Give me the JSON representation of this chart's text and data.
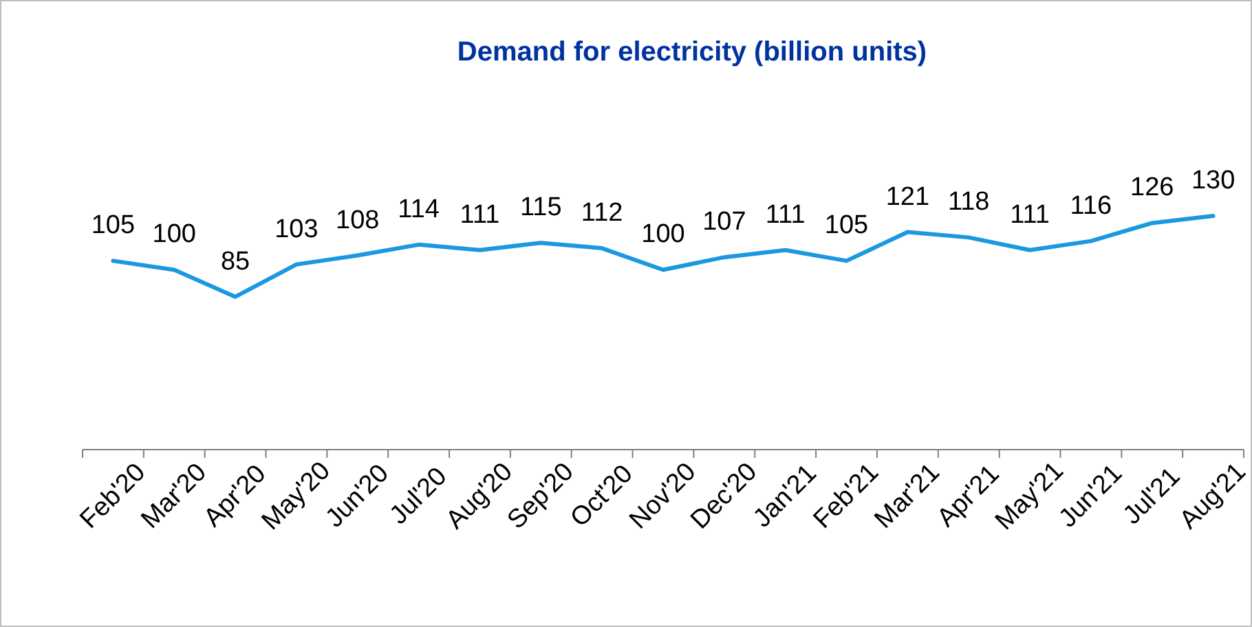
{
  "chart_data": {
    "type": "line",
    "title": "Demand for electricity (billion units)",
    "categories": [
      "Feb'20",
      "Mar'20",
      "Apr'20",
      "May'20",
      "Jun'20",
      "Jul'20",
      "Aug'20",
      "Sep'20",
      "Oct'20",
      "Nov'20",
      "Dec'20",
      "Jan'21",
      "Feb'21",
      "Mar'21",
      "Apr'21",
      "May'21",
      "Jun'21",
      "Jul'21",
      "Aug'21"
    ],
    "series": [
      {
        "color": "#1b98e0",
        "values": [
          105,
          100,
          85,
          103,
          108,
          114,
          111,
          115,
          112,
          100,
          107,
          111,
          105,
          121,
          118,
          111,
          116,
          126,
          130
        ]
      }
    ],
    "tick_labels": "x",
    "data_labels": true,
    "marker": "none",
    "line_style": "solid"
  }
}
